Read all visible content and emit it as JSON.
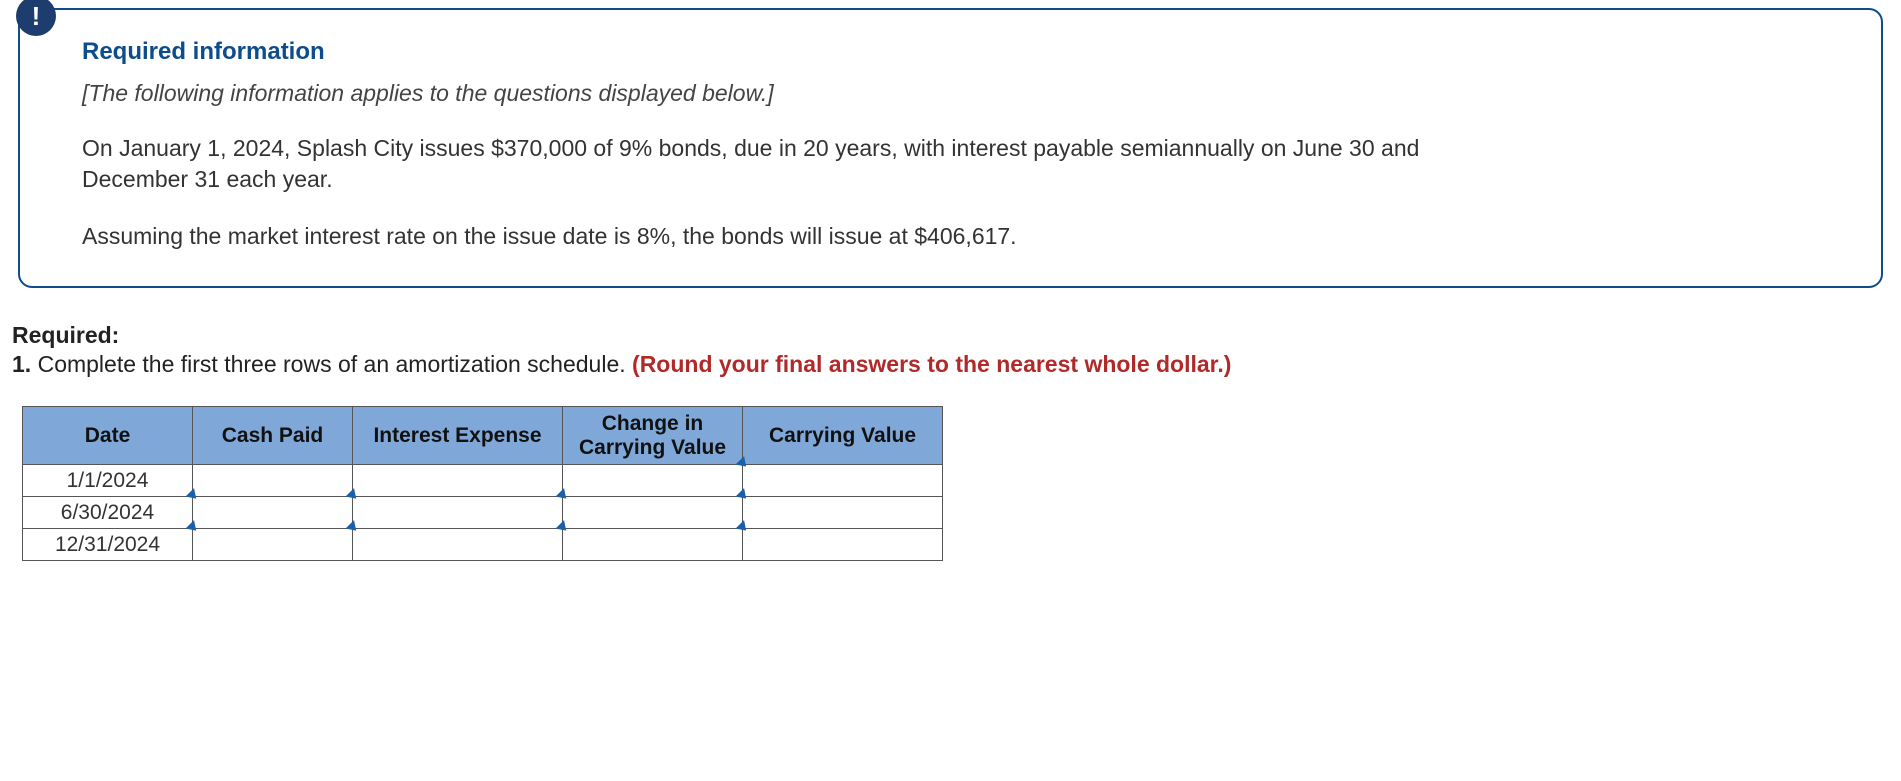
{
  "alert_glyph": "!",
  "info": {
    "heading": "Required information",
    "instruction": "[The following information applies to the questions displayed below.]",
    "para1": "On January 1, 2024, Splash City issues $370,000 of 9% bonds, due in 20 years, with interest payable semiannually on June 30 and December 31 each year.",
    "para2": "Assuming the market interest rate on the issue date is 8%, the bonds will issue at $406,617."
  },
  "required": {
    "label": "Required:",
    "number": "1.",
    "text": " Complete the first three rows of an amortization schedule. ",
    "hint": "(Round your final answers to the nearest whole dollar.)"
  },
  "table": {
    "headers": {
      "date": "Date",
      "cash": "Cash Paid",
      "interest": "Interest Expense",
      "change": "Change in\nCarrying Value",
      "carrying": "Carrying Value"
    },
    "columns": {
      "date_width": 170,
      "cash_width": 160,
      "interest_width": 210,
      "change_width": 180,
      "carrying_width": 200
    },
    "header_bg": "#7fa8d9",
    "border_color": "#555555",
    "marker_color": "#1d5fa8",
    "rows": [
      {
        "date": "1/1/2024",
        "cash": "",
        "interest": "",
        "change": "",
        "carrying": "",
        "inputs": {
          "cash": false,
          "interest": false,
          "change": false,
          "carrying": true
        }
      },
      {
        "date": "6/30/2024",
        "cash": "",
        "interest": "",
        "change": "",
        "carrying": "",
        "inputs": {
          "cash": true,
          "interest": true,
          "change": true,
          "carrying": true
        }
      },
      {
        "date": "12/31/2024",
        "cash": "",
        "interest": "",
        "change": "",
        "carrying": "",
        "inputs": {
          "cash": true,
          "interest": true,
          "change": true,
          "carrying": true
        }
      }
    ]
  },
  "colors": {
    "info_border": "#0e4d8c",
    "badge_bg": "#1d3d6e",
    "heading": "#0e4d8c",
    "hint": "#b02a2a"
  }
}
